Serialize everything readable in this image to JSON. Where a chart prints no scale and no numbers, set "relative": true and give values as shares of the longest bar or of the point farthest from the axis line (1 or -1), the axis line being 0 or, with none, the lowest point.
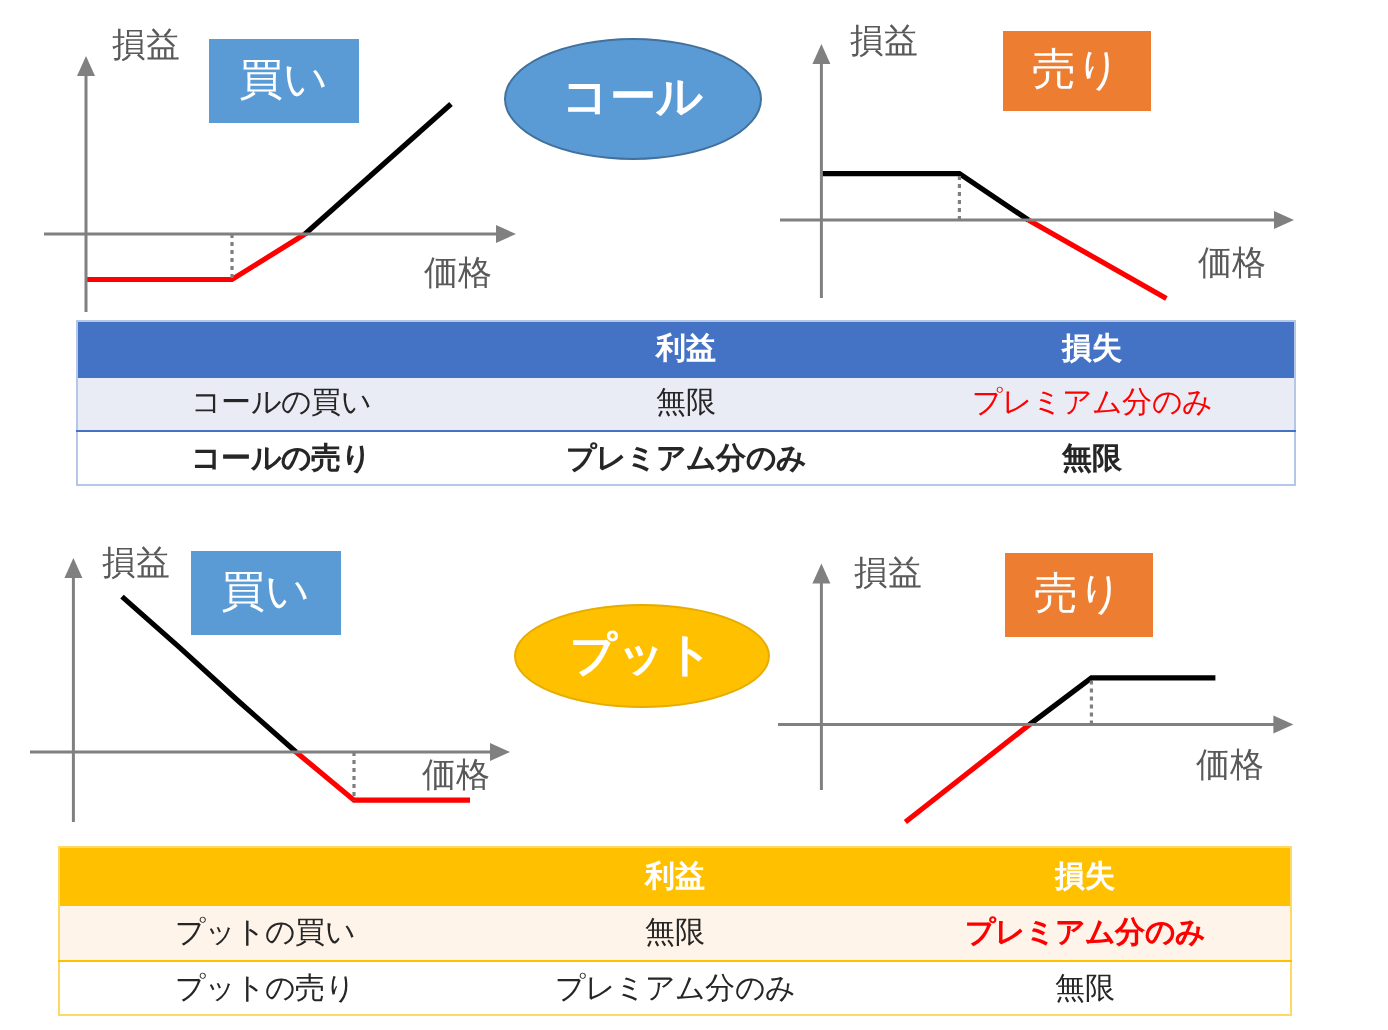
{
  "chart_data": [
    {
      "type": "line",
      "relative": true,
      "title": "買い",
      "xlabel": "価格",
      "ylabel": "損益",
      "categories": [
        null,
        null,
        null,
        null,
        null,
        null
      ],
      "series": [
        {
          "color": "#ff0000",
          "values": [
            -0.35,
            -0.35,
            -0.35,
            0,
            null,
            null
          ]
        },
        {
          "color": "#000000",
          "values": [
            null,
            null,
            null,
            0,
            0.5,
            1
          ]
        }
      ]
    },
    {
      "type": "other",
      "title": "コール"
    },
    {
      "type": "line",
      "relative": true,
      "title": "売り",
      "xlabel": "価格",
      "ylabel": "損益",
      "categories": [
        null,
        null,
        null,
        null,
        null,
        null
      ],
      "series": [
        {
          "color": "#000000",
          "values": [
            0.59,
            0.59,
            0.59,
            0,
            null,
            null
          ]
        },
        {
          "color": "#ff0000",
          "values": [
            null,
            null,
            null,
            0,
            -0.5,
            -1
          ]
        }
      ]
    },
    {
      "type": "other",
      "categories": [
        "利益",
        "損失"
      ],
      "y_categories": [
        "コールの買い",
        "コールの売り"
      ],
      "cell_labels": [
        [
          "無限",
          "プレミアム分のみ"
        ],
        [
          "プレミアム分のみ",
          "無限"
        ]
      ]
    },
    {
      "type": "line",
      "relative": true,
      "title": "買い",
      "xlabel": "価格",
      "ylabel": "損益",
      "categories": [
        null,
        null,
        null,
        null,
        null,
        null,
        null
      ],
      "series": [
        {
          "color": "#000000",
          "values": [
            1,
            0.67,
            0.33,
            0,
            null,
            null,
            null
          ]
        },
        {
          "color": "#ff0000",
          "values": [
            null,
            null,
            null,
            0,
            -0.31,
            -0.31,
            -0.31
          ]
        }
      ]
    },
    {
      "type": "other",
      "title": "プット"
    },
    {
      "type": "line",
      "relative": true,
      "title": "売り",
      "xlabel": "価格",
      "ylabel": "損益",
      "categories": [
        null,
        null,
        null,
        null,
        null,
        null
      ],
      "series": [
        {
          "color": "#ff0000",
          "values": [
            -1,
            -0.5,
            0,
            null,
            null,
            null
          ]
        },
        {
          "color": "#000000",
          "values": [
            null,
            null,
            0,
            0.48,
            0.48,
            0.48
          ]
        }
      ]
    },
    {
      "type": "other",
      "categories": [
        "利益",
        "損失"
      ],
      "y_categories": [
        "プットの買い",
        "プットの売り"
      ],
      "cell_labels": [
        [
          "無限",
          "プレミアム分のみ"
        ],
        [
          "プレミアム分のみ",
          "無限"
        ]
      ]
    }
  ]
}
